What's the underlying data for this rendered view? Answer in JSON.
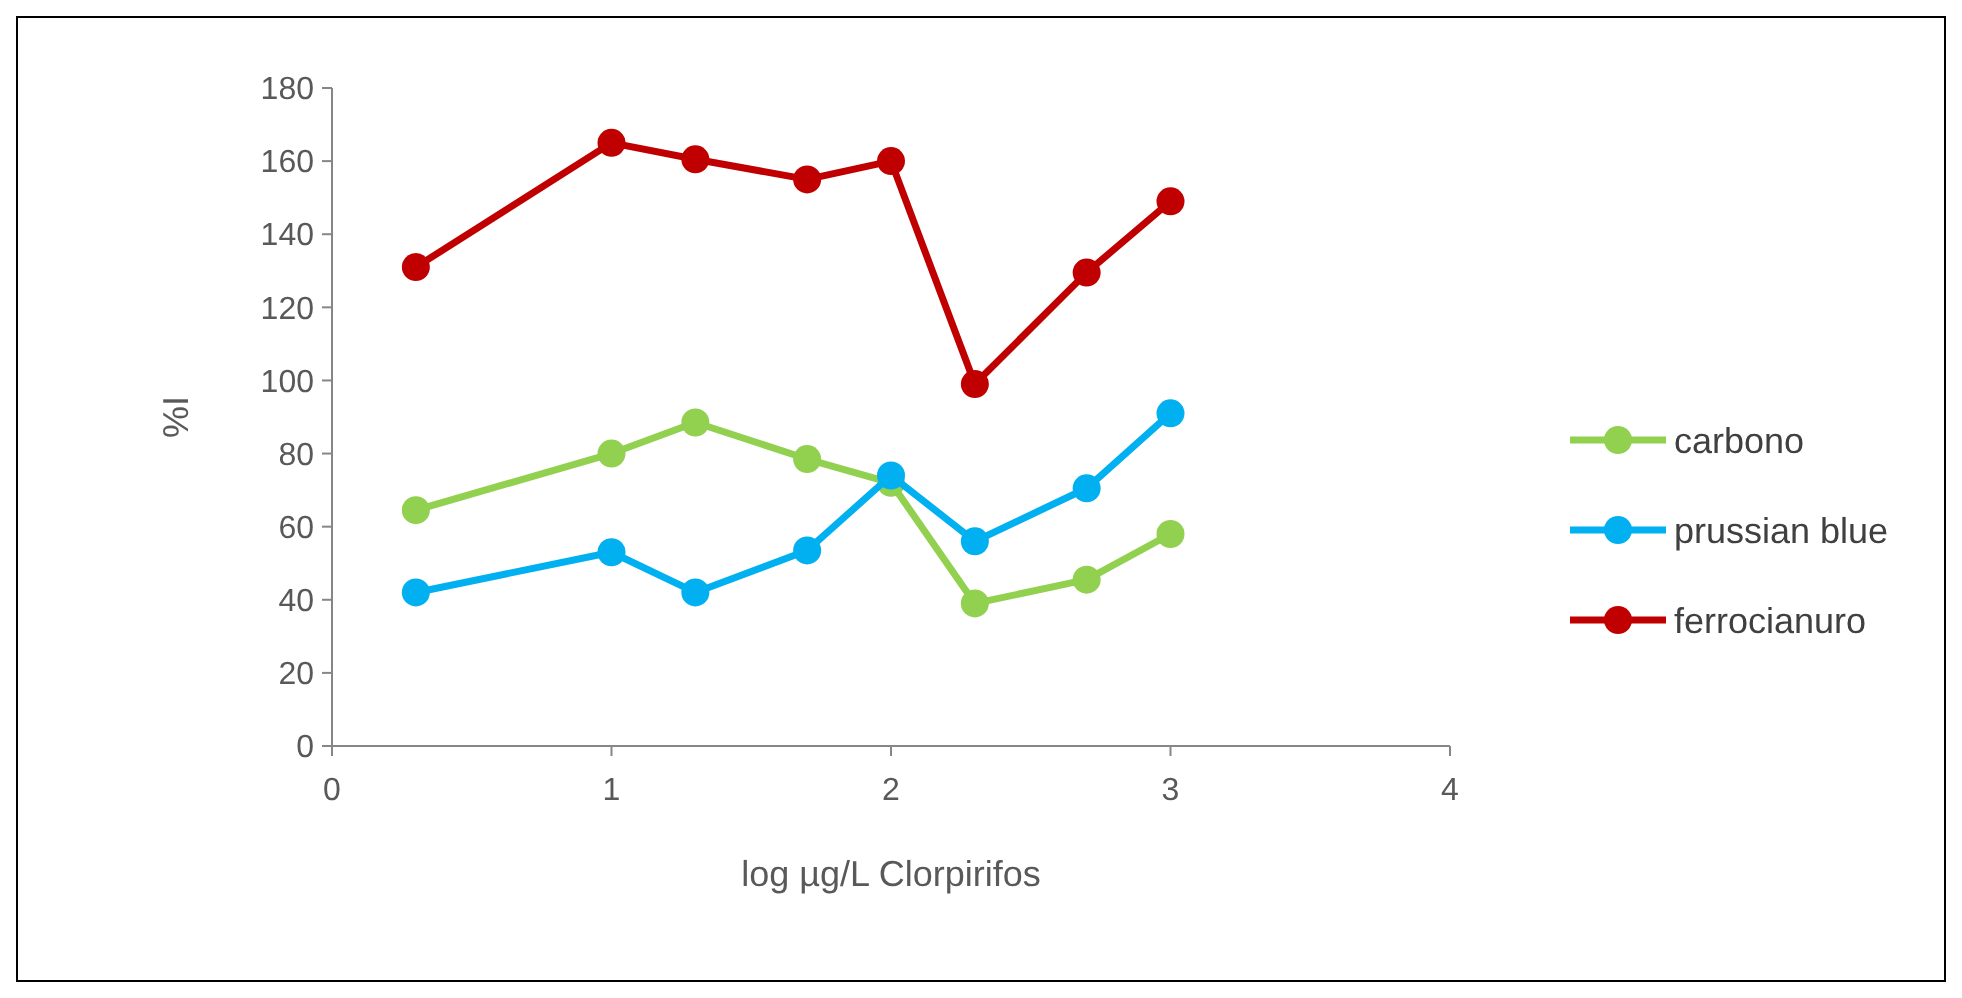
{
  "chart_data": {
    "type": "line",
    "xlabel": "log µg/L Clorpirifos",
    "ylabel": "%I",
    "x": [
      0.3,
      1,
      1.3,
      1.7,
      2,
      2.3,
      2.7,
      3
    ],
    "series": [
      {
        "name": "carbono",
        "color": "#92d050",
        "values": [
          64.5,
          80,
          88.5,
          78.5,
          72,
          39,
          45.5,
          58
        ]
      },
      {
        "name": "prussian blue",
        "color": "#00b0f0",
        "values": [
          42,
          53,
          42,
          53.5,
          74,
          56,
          70.5,
          91
        ]
      },
      {
        "name": "ferrocianuro",
        "color": "#c00000",
        "values": [
          131,
          165,
          160.5,
          155,
          160,
          99,
          129.5,
          149
        ]
      }
    ],
    "xlim": [
      0,
      4
    ],
    "xticks": [
      0,
      1,
      2,
      3,
      4
    ],
    "ylim": [
      0,
      180
    ],
    "yticks": [
      0,
      20,
      40,
      60,
      80,
      100,
      120,
      140,
      160,
      180
    ],
    "grid": false,
    "legend": "right",
    "marker": "circle",
    "line_style": "solid"
  }
}
